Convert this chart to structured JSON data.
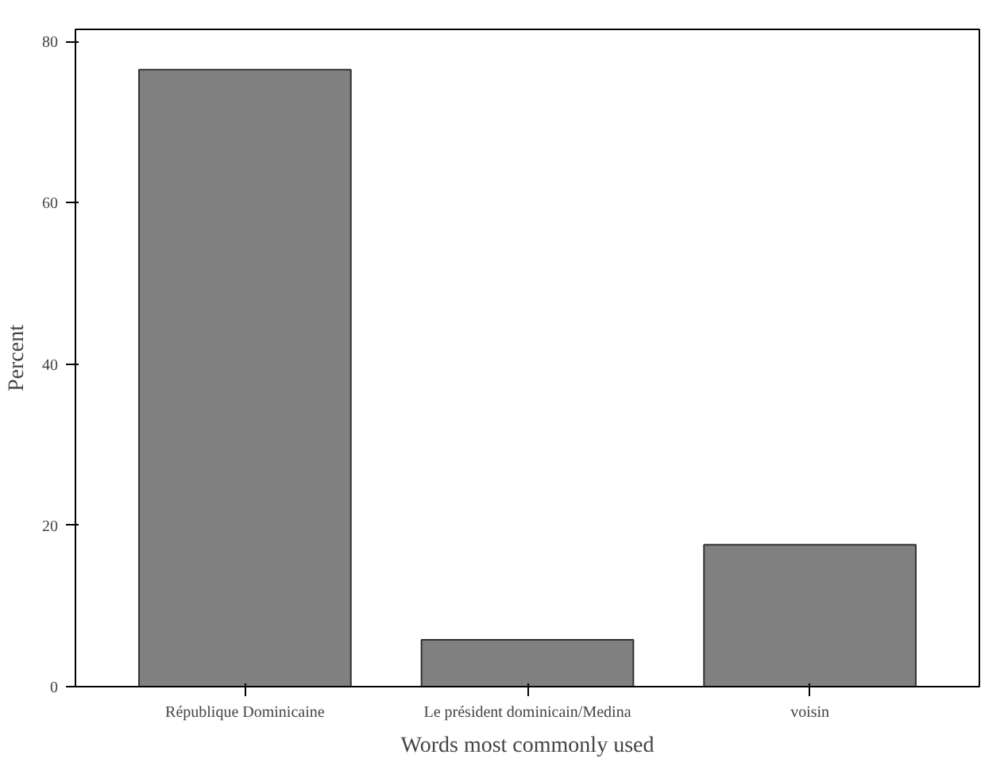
{
  "chart_data": {
    "type": "bar",
    "xlabel": "Words most commonly used",
    "ylabel": "Percent",
    "categories": [
      "République Dominicaine",
      "Le président dominicain/Medina",
      "voisin"
    ],
    "values": [
      76.5,
      5.8,
      17.6
    ],
    "color": "#808080",
    "ylim": [
      0,
      81.5
    ],
    "yticks": [
      0,
      20,
      40,
      60,
      80
    ],
    "grid": false
  }
}
